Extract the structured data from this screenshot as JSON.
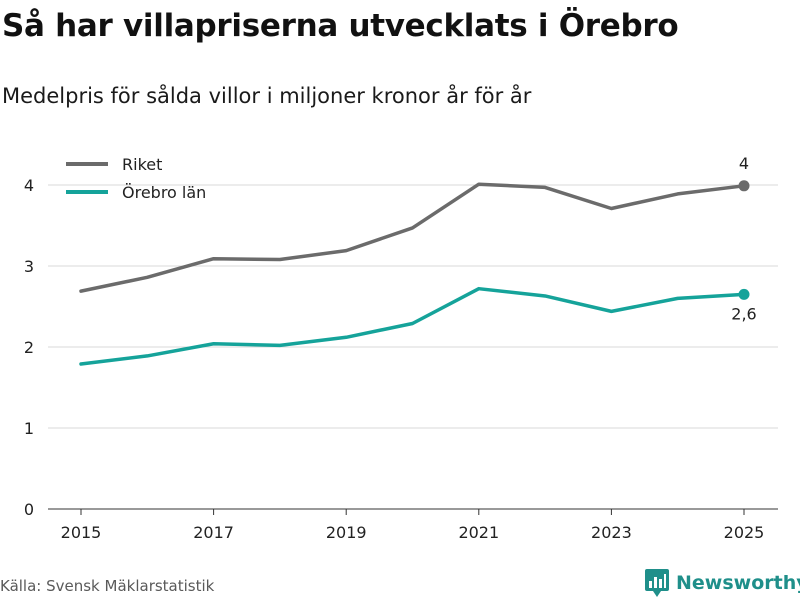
{
  "title": "Så har villapriserna utvecklats i Örebro",
  "subtitle": "Medelpris för sålda villor i miljoner kronor år för år",
  "source": "Källa: Svensk Mäklarstatistik",
  "brand": {
    "name": "Newsworthy",
    "icon": "newsworthy-logo-icon",
    "color": "#1f8f8a"
  },
  "chart_data": {
    "type": "line",
    "title": "Så har villapriserna utvecklats i Örebro",
    "subtitle": "Medelpris för sålda villor i miljoner kronor år för år",
    "xlabel": "",
    "ylabel": "",
    "x": [
      2015,
      2016,
      2017,
      2018,
      2019,
      2020,
      2021,
      2022,
      2023,
      2024,
      2025
    ],
    "xticks": [
      2015,
      2017,
      2019,
      2021,
      2023,
      2025
    ],
    "xtick_labels": [
      "2015",
      "2017",
      "2019",
      "2021",
      "2023",
      "2025"
    ],
    "xlim": [
      2015,
      2025
    ],
    "yticks": [
      0,
      1,
      2,
      3,
      4
    ],
    "ytick_labels": [
      "0",
      "1",
      "2",
      "3",
      "4"
    ],
    "ylim": [
      0,
      4.25
    ],
    "grid": true,
    "legend_position": "top-left",
    "series": [
      {
        "name": "Riket",
        "color": "#6b6b6b",
        "values": [
          2.69,
          2.86,
          3.09,
          3.08,
          3.19,
          3.47,
          4.01,
          3.97,
          3.71,
          3.89,
          3.99
        ],
        "end_label": "4"
      },
      {
        "name": "Örebro län",
        "color": "#15a39a",
        "values": [
          1.79,
          1.89,
          2.04,
          2.02,
          2.12,
          2.29,
          2.72,
          2.63,
          2.44,
          2.6,
          2.65
        ],
        "end_label": "2,6"
      }
    ]
  }
}
